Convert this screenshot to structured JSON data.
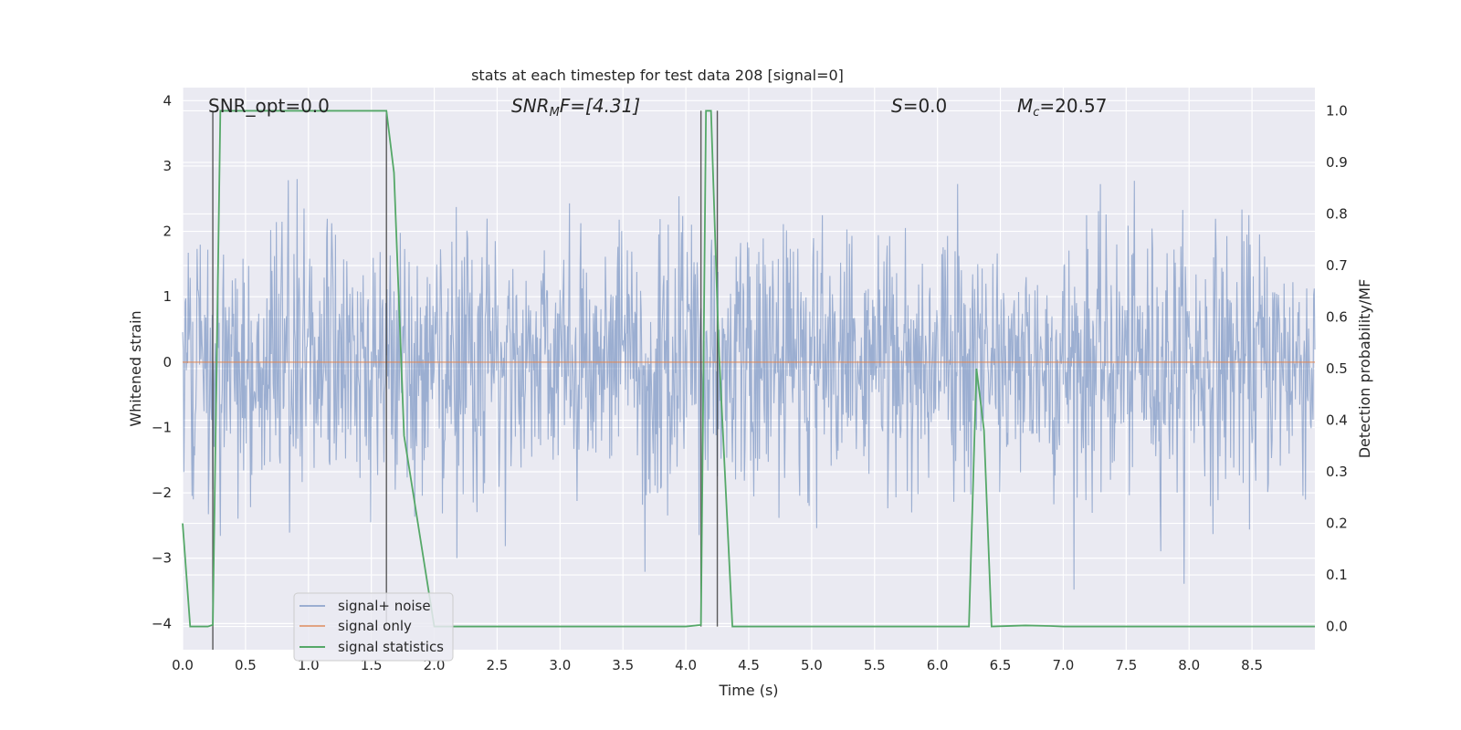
{
  "chart_data": {
    "type": "line",
    "title": "stats at each timestep for test data 208 [signal=0]",
    "xlabel": "Time (s)",
    "ylabel": "Whitened strain",
    "y2label": "Detection probability/MF",
    "xlim": [
      0,
      9.0
    ],
    "ylim": [
      -4.4,
      4.2
    ],
    "y2lim": [
      -0.045,
      1.045
    ],
    "xticks": [
      "0.0",
      "0.5",
      "1.0",
      "1.5",
      "2.0",
      "2.5",
      "3.0",
      "3.5",
      "4.0",
      "4.5",
      "5.0",
      "5.5",
      "6.0",
      "6.5",
      "7.0",
      "7.5",
      "8.0",
      "8.5"
    ],
    "yticks": [
      "4",
      "3",
      "2",
      "1",
      "0",
      "−1",
      "−2",
      "−3",
      "−4"
    ],
    "y2ticks": [
      "1.0",
      "0.9",
      "0.8",
      "0.7",
      "0.6",
      "0.5",
      "0.4",
      "0.3",
      "0.2",
      "0.1",
      "0.0"
    ],
    "annotations": {
      "snr_opt": "SNR_opt=0.0",
      "snr_mf_base": "SNR",
      "snr_mf_sub": "M",
      "snr_mf_rest": "F=[4.31]",
      "s_label": "S",
      "s_value": "=0.0",
      "mc_base": "M",
      "mc_sub": "c",
      "mc_value": "=20.57"
    },
    "legend": {
      "position": "lower-left",
      "entries": [
        "signal+ noise",
        "signal only",
        "signal statistics"
      ]
    },
    "series": [
      {
        "name": "signal+ noise",
        "color": "#4c72b0",
        "alpha": 0.5,
        "noise_sigma": 1.0,
        "t_start": 0,
        "t_end": 9.0
      },
      {
        "name": "signal only",
        "color": "#dd8452",
        "constant": 0.0
      },
      {
        "name": "signal statistics",
        "color": "#55a868",
        "axis": "right",
        "t": [
          0.0,
          0.06,
          0.2,
          0.24,
          0.3,
          1.62,
          1.68,
          1.76,
          2.0,
          2.3,
          3.0,
          4.0,
          4.12,
          4.16,
          4.2,
          4.26,
          4.37,
          4.5,
          6.25,
          6.31,
          6.37,
          6.43,
          6.7,
          6.9,
          7.0,
          9.0
        ],
        "values": [
          0.2,
          0.0,
          0.0,
          0.003,
          1.0,
          1.0,
          0.88,
          0.37,
          0.0,
          0.0,
          0.0,
          0.0,
          0.003,
          1.0,
          1.0,
          0.55,
          0.0,
          0.0,
          0.0,
          0.5,
          0.38,
          0.0,
          0.002,
          0.001,
          0.0,
          0.0
        ]
      }
    ],
    "vlines": [
      {
        "t": 0.24,
        "color": "#404040",
        "from": -0.045,
        "to": 1.0
      },
      {
        "t": 1.62,
        "color": "#404040",
        "from": 0.0,
        "to": 1.0
      },
      {
        "t": 4.12,
        "color": "#404040",
        "from": 0.0,
        "to": 1.0
      },
      {
        "t": 4.25,
        "color": "#404040",
        "from": 0.0,
        "to": 1.0
      }
    ]
  }
}
